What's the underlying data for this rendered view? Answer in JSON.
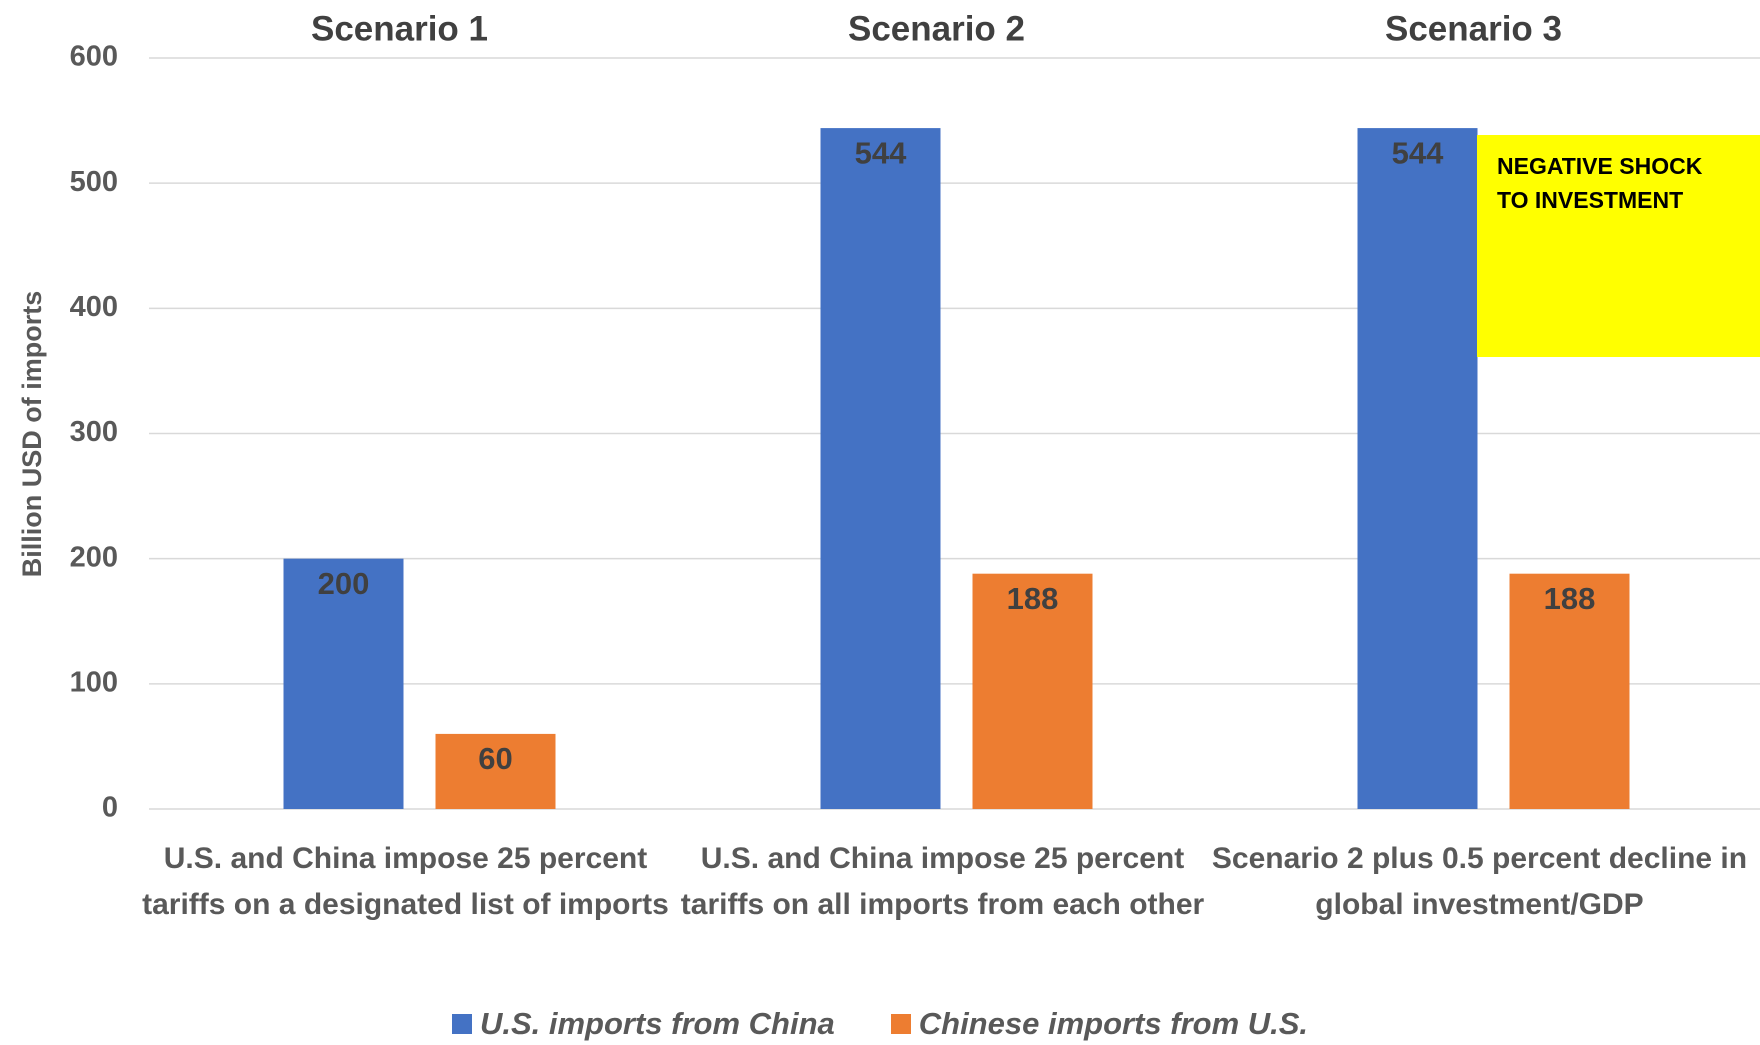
{
  "chart_data": {
    "type": "bar",
    "y_label": "Billion USD of imports",
    "scenario_titles": [
      "Scenario 1",
      "Scenario 2",
      "Scenario 3"
    ],
    "categories": [
      "U.S. and China impose 25 percent tariffs on a designated list of imports",
      "U.S. and China impose 25 percent tariffs on all imports from each other",
      "Scenario 2 plus 0.5 percent decline in global investment/GDP"
    ],
    "series": [
      {
        "name": "U.S. imports from China",
        "color": "#4472c4",
        "values": [
          200,
          544,
          544
        ]
      },
      {
        "name": "Chinese imports from U.S.",
        "color": "#ed7d31",
        "values": [
          60,
          188,
          188
        ]
      }
    ],
    "annotation": "NEGATIVE SHOCK TO INVESTMENT",
    "ylim": [
      0,
      600
    ],
    "yticks": [
      0,
      100,
      200,
      300,
      400,
      500,
      600
    ],
    "grid": true
  }
}
